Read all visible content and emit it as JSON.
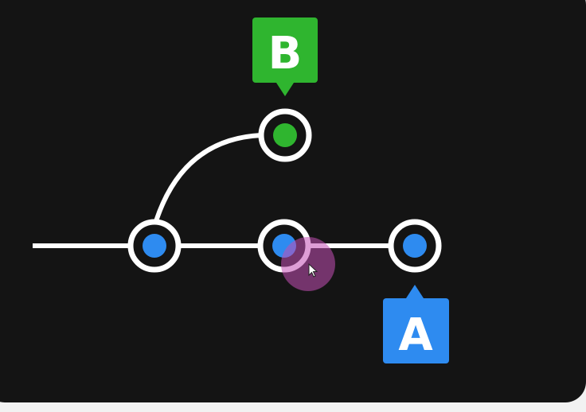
{
  "colors": {
    "canvas": "#141414",
    "frame": "#f2f2f2",
    "line": "#ffffff",
    "blue": "#2e8bf0",
    "green": "#2fb52f",
    "cursor_highlight": "#c24fb4"
  },
  "labels": {
    "branch_a": "A",
    "branch_b": "B"
  },
  "commits": [
    {
      "id": "c1",
      "color": "blue",
      "branch": "main"
    },
    {
      "id": "c2",
      "color": "blue",
      "branch": "main"
    },
    {
      "id": "c3",
      "color": "blue",
      "branch": "main"
    },
    {
      "id": "c4",
      "color": "green",
      "branch": "side"
    }
  ],
  "icons": {
    "cursor": "cursor-arrow-icon"
  }
}
